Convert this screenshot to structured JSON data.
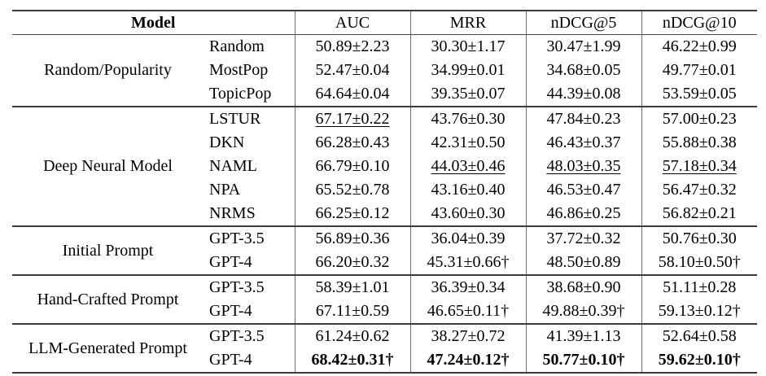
{
  "colors": {
    "background": "#ffffff",
    "text": "#000000",
    "rule_dark": "#3c3c3c",
    "rule_light": "#6e6e6e"
  },
  "table": {
    "header": {
      "model_label": "Model",
      "metrics": [
        "AUC",
        "MRR",
        "nDCG@5",
        "nDCG@10"
      ]
    },
    "sections": [
      {
        "category": "Random/Popularity",
        "rows": [
          {
            "model": "Random",
            "values": [
              "50.89±2.23",
              "30.30±1.17",
              "30.47±1.99",
              "46.22±0.99"
            ]
          },
          {
            "model": "MostPop",
            "values": [
              "52.47±0.04",
              "34.99±0.01",
              "34.68±0.05",
              "49.77±0.01"
            ]
          },
          {
            "model": "TopicPop",
            "values": [
              "64.64±0.04",
              "39.35±0.07",
              "44.39±0.08",
              "53.59±0.05"
            ]
          }
        ]
      },
      {
        "category": "Deep Neural Model",
        "rows": [
          {
            "model": "LSTUR",
            "values": [
              "67.17±0.22",
              "43.76±0.30",
              "47.84±0.23",
              "57.00±0.23"
            ],
            "underline": [
              0
            ]
          },
          {
            "model": "DKN",
            "values": [
              "66.28±0.43",
              "42.31±0.50",
              "46.43±0.37",
              "55.88±0.38"
            ]
          },
          {
            "model": "NAML",
            "values": [
              "66.79±0.10",
              "44.03±0.46",
              "48.03±0.35",
              "57.18±0.34"
            ],
            "underline": [
              1,
              2,
              3
            ]
          },
          {
            "model": "NPA",
            "values": [
              "65.52±0.78",
              "43.16±0.40",
              "46.53±0.47",
              "56.47±0.32"
            ]
          },
          {
            "model": "NRMS",
            "values": [
              "66.25±0.12",
              "43.60±0.30",
              "46.86±0.25",
              "56.82±0.21"
            ]
          }
        ]
      },
      {
        "category": "Initial Prompt",
        "rows": [
          {
            "model": "GPT-3.5",
            "values": [
              "56.89±0.36",
              "36.04±0.39",
              "37.72±0.32",
              "50.76±0.30"
            ]
          },
          {
            "model": "GPT-4",
            "values": [
              "66.20±0.32",
              "45.31±0.66†",
              "48.50±0.89",
              "58.10±0.50†"
            ]
          }
        ]
      },
      {
        "category": "Hand-Crafted Prompt",
        "rows": [
          {
            "model": "GPT-3.5",
            "values": [
              "58.39±1.01",
              "36.39±0.34",
              "38.68±0.90",
              "51.11±0.28"
            ]
          },
          {
            "model": "GPT-4",
            "values": [
              "67.11±0.59",
              "46.65±0.11†",
              "49.88±0.39†",
              "59.13±0.12†"
            ]
          }
        ]
      },
      {
        "category": "LLM-Generated Prompt",
        "rows": [
          {
            "model": "GPT-3.5",
            "values": [
              "61.24±0.62",
              "38.27±0.72",
              "41.39±1.13",
              "52.64±0.58"
            ]
          },
          {
            "model": "GPT-4",
            "values": [
              "68.42±0.31†",
              "47.24±0.12†",
              "50.77±0.10†",
              "59.62±0.10†"
            ],
            "bold_values": true
          }
        ]
      }
    ]
  }
}
